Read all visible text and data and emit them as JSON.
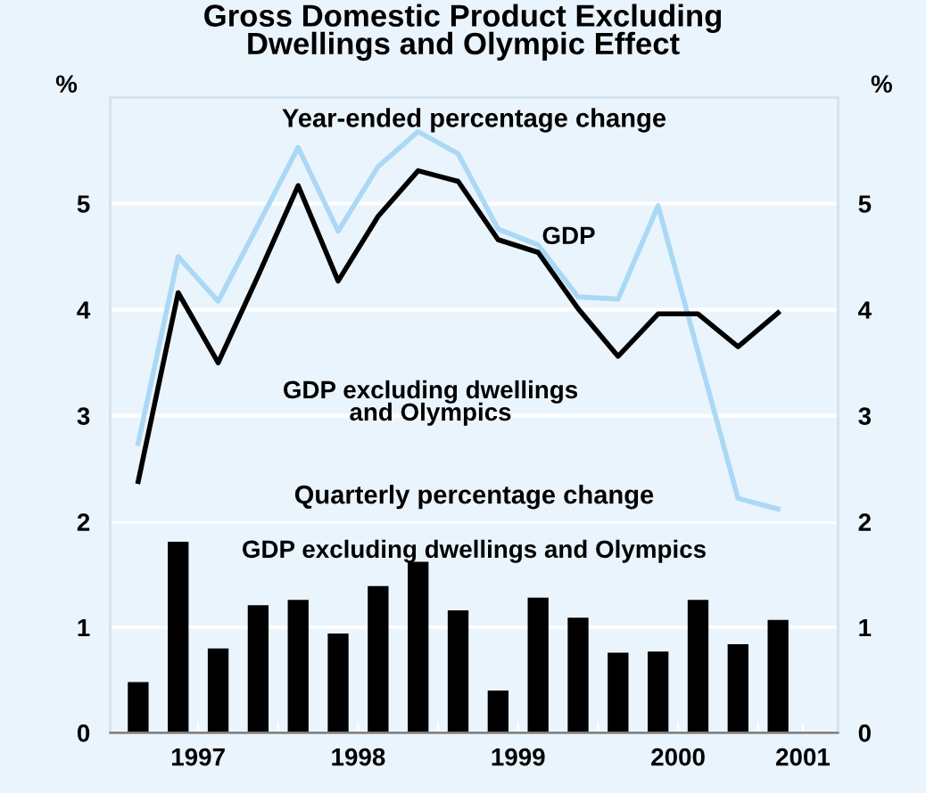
{
  "chart_data": [
    {
      "type": "line",
      "title": "Gross Domestic Product Excluding\nDwellings and Olympic Effect",
      "ylabel": "%",
      "y2label": "%",
      "annotations": [
        "Year-ended percentage change"
      ],
      "x": [
        1997.125,
        1997.375,
        1997.625,
        1997.875,
        1998.125,
        1998.375,
        1998.625,
        1998.875,
        1999.125,
        1999.375,
        1999.625,
        1999.875,
        2000.125,
        2000.375,
        2000.625,
        2000.875,
        2001.125
      ],
      "series": [
        {
          "name": "GDP",
          "color": "#aad8f5",
          "values": [
            2.74,
            4.5,
            4.08,
            4.8,
            5.53,
            4.74,
            5.35,
            5.68,
            5.47,
            4.76,
            4.61,
            4.12,
            4.1,
            4.98,
            3.6,
            2.22,
            2.12
          ]
        },
        {
          "name": "GDP excluding dwellings\nand Olympics",
          "color": "#000000",
          "values": [
            2.38,
            4.16,
            3.5,
            4.32,
            5.17,
            4.27,
            4.88,
            5.31,
            5.21,
            4.66,
            4.54,
            4.01,
            3.56,
            3.96,
            3.96,
            3.65,
            3.97
          ]
        }
      ],
      "xlim": [
        1996.95,
        2001.5
      ],
      "ylim": [
        2,
        6
      ],
      "yticks": [
        3,
        4,
        5
      ],
      "y2lim": [
        2,
        6
      ],
      "y2ticks": [
        3,
        4,
        5
      ],
      "grid": "y",
      "tick_labels": "y",
      "line_style": "solid",
      "marker": "none"
    },
    {
      "type": "bar",
      "annotations": [
        "Quarterly percentage change"
      ],
      "x": [
        1997.125,
        1997.375,
        1997.625,
        1997.875,
        1998.125,
        1998.375,
        1998.625,
        1998.875,
        1999.125,
        1999.375,
        1999.625,
        1999.875,
        2000.125,
        2000.375,
        2000.625,
        2000.875,
        2001.125
      ],
      "series": [
        {
          "name": "GDP excluding dwellings and Olympics",
          "color": "#000000",
          "values": [
            0.48,
            1.81,
            0.8,
            1.21,
            1.26,
            0.94,
            1.39,
            1.62,
            1.16,
            0.4,
            1.28,
            1.09,
            0.76,
            0.77,
            1.26,
            0.84,
            1.07
          ]
        }
      ],
      "xlim": [
        1996.95,
        2001.5
      ],
      "ylim": [
        0,
        2
      ],
      "yticks": [
        0,
        1,
        2
      ],
      "y2lim": [
        0,
        2
      ],
      "y2ticks": [
        0,
        1,
        2
      ],
      "xticks": [
        {
          "value": 1997.5,
          "label": "1997"
        },
        {
          "value": 1998.5,
          "label": "1998"
        },
        {
          "value": 1999.5,
          "label": "1999"
        },
        {
          "value": 2000.5,
          "label": "2000"
        },
        {
          "value": 2001.28,
          "label": "2001"
        },
        {
          "value": 1998,
          "label": null
        },
        {
          "value": 1999,
          "label": null
        },
        {
          "value": 2000,
          "label": null
        },
        {
          "value": 2001,
          "label": null
        }
      ],
      "grid": "y"
    }
  ]
}
